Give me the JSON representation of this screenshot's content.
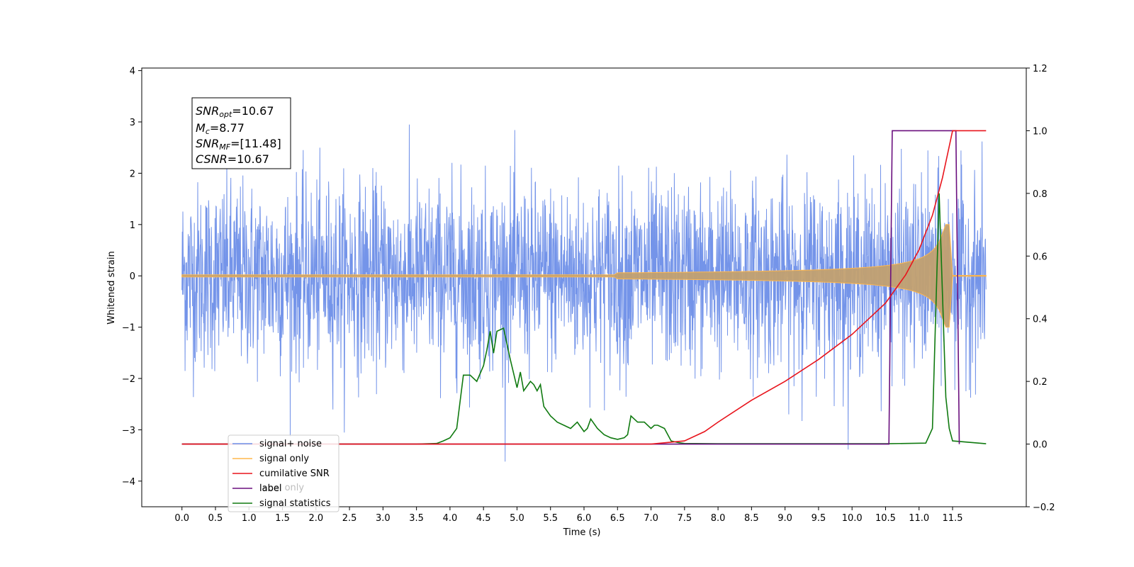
{
  "chart_data": {
    "type": "line",
    "xlabel": "Time (s)",
    "ylabel": "Whitened strain",
    "xlim": [
      -0.6,
      12.6
    ],
    "ylim": [
      -4.5,
      4.05
    ],
    "y2lim": [
      -0.2,
      1.2
    ],
    "x_ticks": [
      "0.0",
      "0.5",
      "1.0",
      "1.5",
      "2.0",
      "2.5",
      "3.0",
      "3.5",
      "4.0",
      "4.5",
      "5.0",
      "5.5",
      "6.0",
      "6.5",
      "7.0",
      "7.5",
      "8.0",
      "8.5",
      "9.0",
      "9.5",
      "10.0",
      "10.5",
      "11.0",
      "11.5"
    ],
    "y_ticks": [
      "4",
      "3",
      "2",
      "1",
      "0",
      "−1",
      "−2",
      "−3",
      "−4"
    ],
    "y2_ticks": [
      "1.2",
      "1.0",
      "0.8",
      "0.6",
      "0.4",
      "0.2",
      "0.0",
      "−0.2"
    ],
    "annotation": {
      "snr_opt": "SNR",
      "snr_opt_sub": "opt",
      "snr_opt_value": "=10.67",
      "mc": "M",
      "mc_sub": "c",
      "mc_value": "=8.77",
      "snr_mf": "SNR",
      "snr_mf_sub": "MF",
      "snr_mf_value": "=[11.48]",
      "csnr": "CSNR",
      "csnr_value": "=10.67"
    },
    "series": [
      {
        "name": "signal+ noise",
        "color": "#6d8ee8",
        "axis": "left",
        "description_type": "noise",
        "sigma": 0.9,
        "t_start": 0.0,
        "t_end": 12.0
      },
      {
        "name": "signal only",
        "color": "#ffb74d",
        "axis": "left",
        "description_type": "chirp",
        "t_end": 11.5,
        "peak_amplitude": 1.0
      },
      {
        "name": "cumilative SNR",
        "color": "#e8141c",
        "axis": "right",
        "x": [
          0,
          7.0,
          7.5,
          7.8,
          8.0,
          8.5,
          9.0,
          9.5,
          10.0,
          10.5,
          10.8,
          11.0,
          11.2,
          11.35,
          11.45,
          11.5,
          12.0
        ],
        "y": [
          0,
          0,
          0.01,
          0.04,
          0.07,
          0.14,
          0.2,
          0.27,
          0.35,
          0.45,
          0.54,
          0.62,
          0.73,
          0.85,
          0.95,
          1.0,
          1.0
        ]
      },
      {
        "name": "label",
        "color": "#6a0f7e",
        "axis": "right",
        "x": [
          0,
          10.55,
          10.6,
          11.55,
          11.6
        ],
        "y": [
          0,
          0,
          1,
          1,
          0
        ]
      },
      {
        "name": "label only",
        "color": "#9e9e9e",
        "axis": "right",
        "hidden": true,
        "x": [],
        "y": []
      },
      {
        "name": "signal statistics",
        "color": "#107a10",
        "axis": "right",
        "x": [
          0,
          3.5,
          3.8,
          3.9,
          4.0,
          4.1,
          4.2,
          4.3,
          4.4,
          4.5,
          4.55,
          4.6,
          4.65,
          4.7,
          4.8,
          4.9,
          5.0,
          5.05,
          5.1,
          5.2,
          5.25,
          5.3,
          5.35,
          5.4,
          5.5,
          5.55,
          5.6,
          5.7,
          5.8,
          5.9,
          6.0,
          6.05,
          6.1,
          6.2,
          6.3,
          6.4,
          6.5,
          6.6,
          6.65,
          6.7,
          6.8,
          6.9,
          7.0,
          7.05,
          7.1,
          7.2,
          7.3,
          7.4,
          7.5,
          8.0,
          10.5,
          11.1,
          11.2,
          11.3,
          11.4,
          11.45,
          11.5,
          12.0
        ],
        "y": [
          0,
          0,
          0.002,
          0.01,
          0.02,
          0.05,
          0.22,
          0.22,
          0.2,
          0.25,
          0.3,
          0.36,
          0.29,
          0.36,
          0.37,
          0.27,
          0.18,
          0.23,
          0.17,
          0.2,
          0.19,
          0.17,
          0.19,
          0.12,
          0.09,
          0.08,
          0.07,
          0.06,
          0.05,
          0.07,
          0.04,
          0.05,
          0.08,
          0.05,
          0.03,
          0.02,
          0.015,
          0.02,
          0.03,
          0.09,
          0.07,
          0.07,
          0.05,
          0.06,
          0.06,
          0.05,
          0.01,
          0.005,
          0.002,
          0.001,
          0.001,
          0.003,
          0.05,
          0.8,
          0.15,
          0.05,
          0.01,
          0.001
        ]
      }
    ]
  }
}
